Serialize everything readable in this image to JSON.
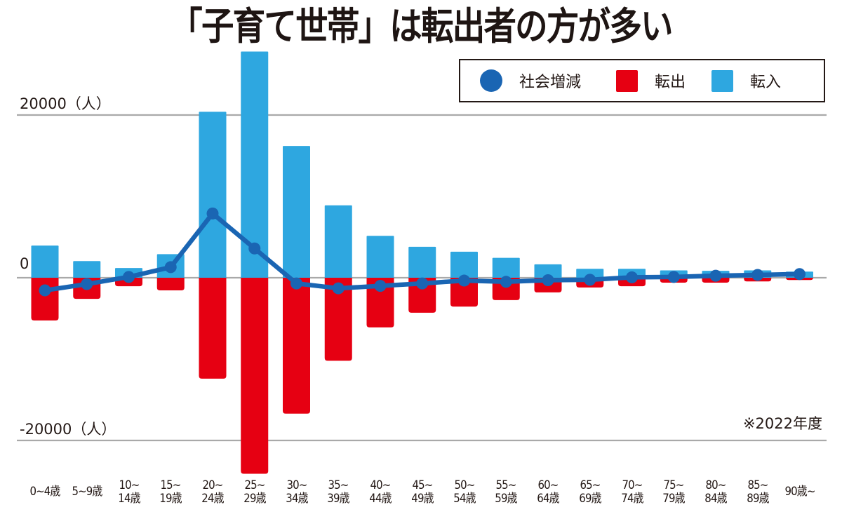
{
  "chart_data": {
    "type": "bar",
    "title": "「子育て世帯」は転出者の方が多い",
    "note": "※2022年度",
    "xlabel": "",
    "ylabel": "（人）",
    "ylim": [
      -24500,
      28000
    ],
    "yticks": [
      {
        "value": 20000,
        "label": "20000（人）"
      },
      {
        "value": 0,
        "label": "0"
      },
      {
        "value": -20000,
        "label": "-20000（人）"
      }
    ],
    "grid": true,
    "legend_position": "top-right",
    "categories": [
      [
        "0~4歳"
      ],
      [
        "5~9歳"
      ],
      [
        "10~",
        "14歳"
      ],
      [
        "15~",
        "19歳"
      ],
      [
        "20~",
        "24歳"
      ],
      [
        "25~",
        "29歳"
      ],
      [
        "30~",
        "34歳"
      ],
      [
        "35~",
        "39歳"
      ],
      [
        "40~",
        "44歳"
      ],
      [
        "45~",
        "49歳"
      ],
      [
        "50~",
        "54歳"
      ],
      [
        "55~",
        "59歳"
      ],
      [
        "60~",
        "64歳"
      ],
      [
        "65~",
        "69歳"
      ],
      [
        "70~",
        "74歳"
      ],
      [
        "75~",
        "79歳"
      ],
      [
        "80~",
        "84歳"
      ],
      [
        "85~",
        "89歳"
      ],
      [
        "90歳~"
      ]
    ],
    "series": [
      {
        "name": "社会増減",
        "type": "line",
        "color": "#1a65b3",
        "values": [
          -1550,
          -780,
          100,
          1300,
          7900,
          3600,
          -700,
          -1300,
          -1000,
          -700,
          -350,
          -500,
          -300,
          -250,
          50,
          100,
          250,
          350,
          450
        ]
      },
      {
        "name": "転出",
        "type": "bar",
        "color": "#e60012",
        "values": [
          -5250,
          -2600,
          -1050,
          -1550,
          -12400,
          -24100,
          -16700,
          -10200,
          -6100,
          -4300,
          -3550,
          -2750,
          -1800,
          -1200,
          -1050,
          -600,
          -600,
          -450,
          -280
        ]
      },
      {
        "name": "転入",
        "type": "bar",
        "color": "#2ea7e0",
        "values": [
          3950,
          2050,
          1200,
          2900,
          20400,
          27800,
          16200,
          8900,
          5150,
          3800,
          3200,
          2450,
          1650,
          1100,
          1100,
          900,
          850,
          900,
          750
        ]
      }
    ]
  },
  "legend": {
    "items": [
      {
        "label": "社会増減",
        "shape": "circle",
        "color": "#1a65b3"
      },
      {
        "label": "転出",
        "shape": "square",
        "color": "#e60012"
      },
      {
        "label": "転入",
        "shape": "square",
        "color": "#2ea7e0"
      }
    ]
  },
  "colors": {
    "grid": "#a9a9a9",
    "text": "#231815"
  }
}
